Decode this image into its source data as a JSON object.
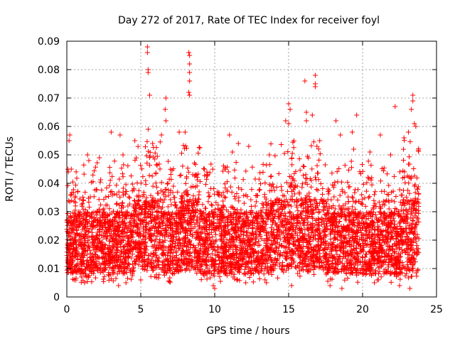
{
  "chart_data": {
    "type": "scatter",
    "title": "Day 272 of 2017, Rate Of TEC Index for receiver foyl",
    "xlabel": "GPS time / hours",
    "ylabel": "ROTI / TECUs",
    "xlim": [
      0,
      25
    ],
    "ylim": [
      0,
      0.09
    ],
    "x_ticks": [
      "0",
      "5",
      "10",
      "15",
      "20",
      "25"
    ],
    "y_ticks": [
      "0",
      "0.01",
      "0.02",
      "0.03",
      "0.04",
      "0.05",
      "0.06",
      "0.07",
      "0.08",
      "0.09"
    ],
    "grid": true,
    "legend": "none",
    "marker": "+",
    "color": "#ff0000",
    "data_range_hours": [
      0,
      23.8
    ],
    "typical_range": [
      0.005,
      0.035
    ],
    "series": [
      {
        "points": [
          [
            0.2,
            0.057
          ],
          [
            0.15,
            0.055
          ],
          [
            0.1,
            0.044
          ],
          [
            0.3,
            0.036
          ],
          [
            1.4,
            0.05
          ],
          [
            2.2,
            0.049
          ],
          [
            3.0,
            0.058
          ],
          [
            3.6,
            0.057
          ],
          [
            3.8,
            0.05
          ],
          [
            4.6,
            0.055
          ],
          [
            5.45,
            0.088
          ],
          [
            5.45,
            0.086
          ],
          [
            5.5,
            0.08
          ],
          [
            5.5,
            0.079
          ],
          [
            5.6,
            0.071
          ],
          [
            5.5,
            0.059
          ],
          [
            5.8,
            0.054
          ],
          [
            6.4,
            0.057
          ],
          [
            6.7,
            0.07
          ],
          [
            6.65,
            0.066
          ],
          [
            6.7,
            0.062
          ],
          [
            7.6,
            0.058
          ],
          [
            8.25,
            0.086
          ],
          [
            8.3,
            0.085
          ],
          [
            8.3,
            0.082
          ],
          [
            8.3,
            0.079
          ],
          [
            8.3,
            0.076
          ],
          [
            8.25,
            0.072
          ],
          [
            8.3,
            0.071
          ],
          [
            8.0,
            0.058
          ],
          [
            9.3,
            0.045
          ],
          [
            11.0,
            0.057
          ],
          [
            11.2,
            0.051
          ],
          [
            11.6,
            0.054
          ],
          [
            12.3,
            0.053
          ],
          [
            13.7,
            0.05
          ],
          [
            14.8,
            0.062
          ],
          [
            15.0,
            0.068
          ],
          [
            15.1,
            0.066
          ],
          [
            15.0,
            0.061
          ],
          [
            16.1,
            0.076
          ],
          [
            16.2,
            0.065
          ],
          [
            16.2,
            0.062
          ],
          [
            16.6,
            0.064
          ],
          [
            16.8,
            0.078
          ],
          [
            16.8,
            0.075
          ],
          [
            16.8,
            0.074
          ],
          [
            17.1,
            0.055
          ],
          [
            18.2,
            0.062
          ],
          [
            18.5,
            0.057
          ],
          [
            19.3,
            0.058
          ],
          [
            19.6,
            0.064
          ],
          [
            19.4,
            0.052
          ],
          [
            20.5,
            0.051
          ],
          [
            21.2,
            0.057
          ],
          [
            22.2,
            0.067
          ],
          [
            21.9,
            0.05
          ],
          [
            22.8,
            0.056
          ],
          [
            23.1,
            0.058
          ],
          [
            23.4,
            0.071
          ],
          [
            23.4,
            0.069
          ],
          [
            23.3,
            0.066
          ],
          [
            23.5,
            0.061
          ],
          [
            23.6,
            0.06
          ],
          [
            23.7,
            0.038
          ],
          [
            23.8,
            0.033
          ],
          [
            0.5,
            0.006
          ],
          [
            1.0,
            0.007
          ],
          [
            3.5,
            0.004
          ],
          [
            4.0,
            0.005
          ],
          [
            5.0,
            0.006
          ],
          [
            9.9,
            0.004
          ],
          [
            10.0,
            0.003
          ],
          [
            12.1,
            0.005
          ],
          [
            13.5,
            0.005
          ],
          [
            15.2,
            0.004
          ],
          [
            17.8,
            0.004
          ],
          [
            18.6,
            0.003
          ],
          [
            20.8,
            0.005
          ],
          [
            21.0,
            0.006
          ],
          [
            22.5,
            0.004
          ],
          [
            23.2,
            0.003
          ]
        ]
      }
    ]
  }
}
